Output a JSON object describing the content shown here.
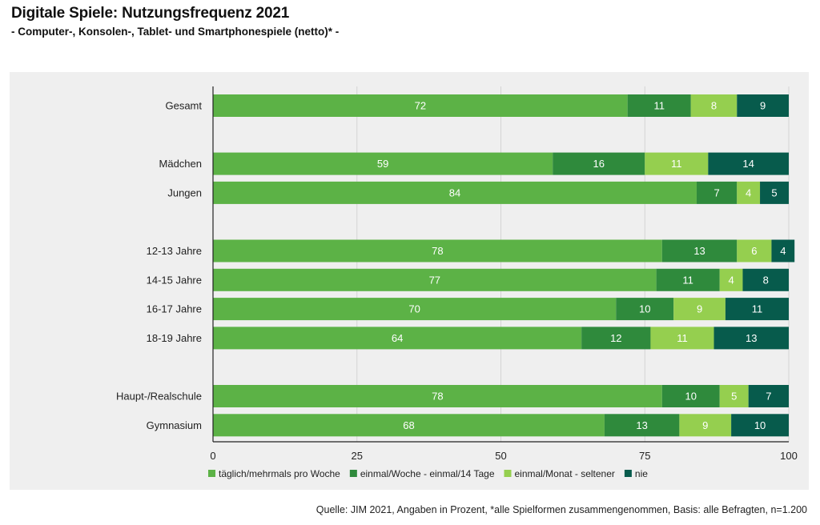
{
  "title": "Digitale Spiele: Nutzungsfrequenz 2021",
  "subtitle": "- Computer-, Konsolen-, Tablet- und Smartphonespiele (netto)* -",
  "source": "Quelle: JIM 2021, Angaben in Prozent, *alle Spielformen zusammengenommen, Basis: alle Befragten, n=1.200",
  "colors": {
    "background_panel": "#efefef",
    "gridline": "#d4d4d4",
    "axis": "#222222",
    "label_text": "#ffffff"
  },
  "chart_data": {
    "type": "bar",
    "orientation": "horizontal",
    "stacked": true,
    "title": "Digitale Spiele: Nutzungsfrequenz 2021",
    "subtitle": "- Computer-, Konsolen-, Tablet- und Smartphonespiele (netto)* -",
    "categories": [
      "Gesamt",
      "Mädchen",
      "Jungen",
      "12-13 Jahre",
      "14-15 Jahre",
      "16-17 Jahre",
      "18-19 Jahre",
      "Haupt-/Realschule",
      "Gymnasium"
    ],
    "groups": [
      [
        "Gesamt"
      ],
      [
        "Mädchen",
        "Jungen"
      ],
      [
        "12-13 Jahre",
        "14-15 Jahre",
        "16-17 Jahre",
        "18-19 Jahre"
      ],
      [
        "Haupt-/Realschule",
        "Gymnasium"
      ]
    ],
    "series": [
      {
        "name": "täglich/mehrmals pro Woche",
        "color": "#5cb246",
        "values": [
          72,
          59,
          84,
          78,
          77,
          70,
          64,
          78,
          68
        ]
      },
      {
        "name": "einmal/Woche - einmal/14 Tage",
        "color": "#2f8a3c",
        "values": [
          11,
          16,
          7,
          13,
          11,
          10,
          12,
          10,
          13
        ]
      },
      {
        "name": "einmal/Monat - seltener",
        "color": "#95cf4f",
        "values": [
          8,
          11,
          4,
          6,
          4,
          9,
          11,
          5,
          9
        ]
      },
      {
        "name": "nie",
        "color": "#075b4c",
        "values": [
          9,
          14,
          5,
          4,
          8,
          11,
          13,
          7,
          10
        ]
      }
    ],
    "xlim": [
      0,
      100
    ],
    "xticks": [
      0,
      25,
      50,
      75,
      100
    ],
    "grid": true,
    "legend_position": "bottom",
    "xlabel": "",
    "ylabel": ""
  }
}
